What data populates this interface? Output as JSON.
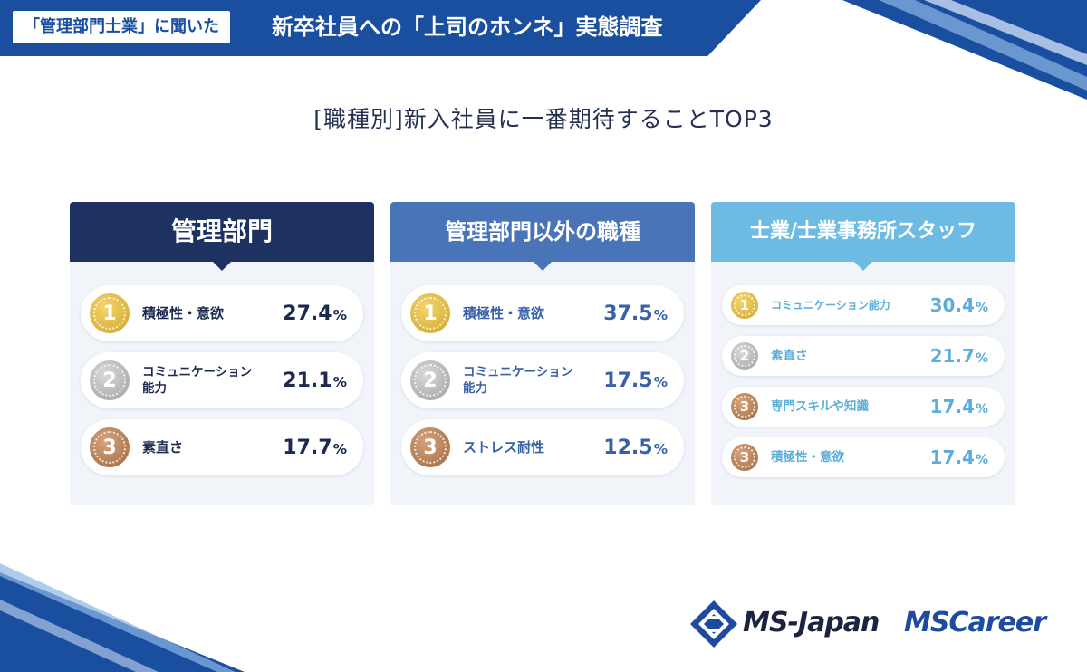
{
  "header": {
    "badge": "「管理部門士業」に聞いた",
    "title": "新卒社員への「上司のホンネ」実態調査"
  },
  "subtitle": "[職種別]新入社員に一番期待することTOP3",
  "colors": {
    "panel1_header": "#1d3261",
    "panel1_text": "#1b2a4e",
    "panel2_header": "#4a74b8",
    "panel2_text": "#3a61a8",
    "panel3_header": "#6dbbe3",
    "panel3_text": "#5aaed9"
  },
  "panels": [
    {
      "title": "管理部門",
      "items": [
        {
          "rank": "1",
          "label": "積極性・意欲",
          "value": "27.4",
          "unit": "%"
        },
        {
          "rank": "2",
          "label": "コミュニケーション能力",
          "label_line1": "コミュニケーション",
          "label_line2": "能力",
          "value": "21.1",
          "unit": "%"
        },
        {
          "rank": "3",
          "label": "素直さ",
          "value": "17.7",
          "unit": "%"
        }
      ]
    },
    {
      "title": "管理部門以外の職種",
      "items": [
        {
          "rank": "1",
          "label": "積極性・意欲",
          "value": "37.5",
          "unit": "%"
        },
        {
          "rank": "2",
          "label": "コミュニケーション能力",
          "label_line1": "コミュニケーション",
          "label_line2": "能力",
          "value": "17.5",
          "unit": "%"
        },
        {
          "rank": "3",
          "label": "ストレス耐性",
          "value": "12.5",
          "unit": "%"
        }
      ]
    },
    {
      "title": "士業/士業事務所スタッフ",
      "items": [
        {
          "rank": "1",
          "label": "コミュニケーション能力",
          "value": "30.4",
          "unit": "%"
        },
        {
          "rank": "2",
          "label": "素直さ",
          "value": "21.7",
          "unit": "%"
        },
        {
          "rank": "3",
          "label": "専門スキルや知識",
          "value": "17.4",
          "unit": "%"
        },
        {
          "rank": "3",
          "label": "積極性・意欲",
          "value": "17.4",
          "unit": "%"
        }
      ]
    }
  ],
  "logos": {
    "msjapan": "MS-Japan",
    "mscareer": "MSCareer"
  }
}
